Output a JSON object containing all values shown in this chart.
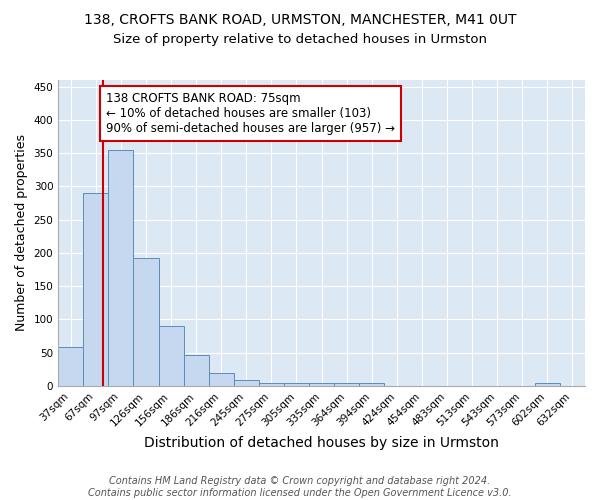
{
  "title": "138, CROFTS BANK ROAD, URMSTON, MANCHESTER, M41 0UT",
  "subtitle": "Size of property relative to detached houses in Urmston",
  "xlabel": "Distribution of detached houses by size in Urmston",
  "ylabel": "Number of detached properties",
  "categories": [
    "37sqm",
    "67sqm",
    "97sqm",
    "126sqm",
    "156sqm",
    "186sqm",
    "216sqm",
    "245sqm",
    "275sqm",
    "305sqm",
    "335sqm",
    "364sqm",
    "394sqm",
    "424sqm",
    "454sqm",
    "483sqm",
    "513sqm",
    "543sqm",
    "573sqm",
    "602sqm",
    "632sqm"
  ],
  "values": [
    58,
    290,
    355,
    192,
    90,
    47,
    20,
    9,
    4,
    5,
    5,
    4,
    5,
    0,
    0,
    0,
    0,
    0,
    0,
    4,
    0
  ],
  "bar_color": "#c5d8f0",
  "bar_edge_color": "#5b8db8",
  "vline_color": "#cc0000",
  "vline_x": 1.27,
  "annotation_text": "138 CROFTS BANK ROAD: 75sqm\n← 10% of detached houses are smaller (103)\n90% of semi-detached houses are larger (957) →",
  "annotation_box_facecolor": "#ffffff",
  "annotation_box_edgecolor": "#cc0000",
  "ylim": [
    0,
    460
  ],
  "yticks": [
    0,
    50,
    100,
    150,
    200,
    250,
    300,
    350,
    400,
    450
  ],
  "figure_bg_color": "#ffffff",
  "plot_bg_color": "#dde8f5",
  "grid_color": "#ffffff",
  "title_fontsize": 10,
  "subtitle_fontsize": 9.5,
  "xlabel_fontsize": 10,
  "ylabel_fontsize": 9,
  "tick_fontsize": 7.5,
  "annotation_fontsize": 8.5,
  "footer_fontsize": 7,
  "footer_color": "#555555",
  "footer_line1": "Contains HM Land Registry data © Crown copyright and database right 2024.",
  "footer_line2": "Contains public sector information licensed under the Open Government Licence v3.0."
}
